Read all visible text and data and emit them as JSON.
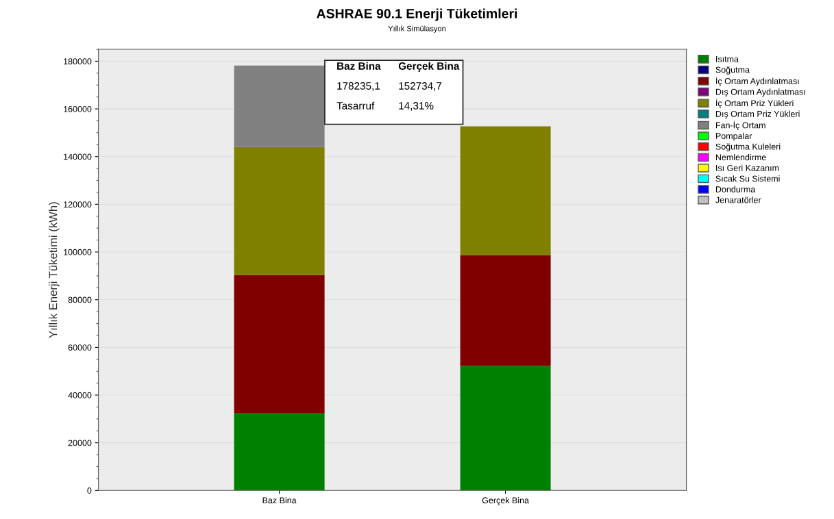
{
  "chart_data": {
    "type": "bar",
    "stacked": true,
    "title": "ASHRAE 90.1 Enerji Tüketimleri",
    "subtitle": "Yıllık Simülasyon",
    "ylabel": "Yıllık Enerji Tüketimi (kWh)",
    "categories": [
      "Baz Bina",
      "Gerçek Bina"
    ],
    "series": [
      {
        "name": "Isıtma",
        "color": "#008000",
        "values": [
          32500,
          52300
        ]
      },
      {
        "name": "Soğutma",
        "color": "#000080",
        "values": [
          0,
          0
        ]
      },
      {
        "name": "İç Ortam Aydınlatması",
        "color": "#800000",
        "values": [
          57800,
          46400
        ]
      },
      {
        "name": "Dış Ortam Aydınlatması",
        "color": "#800080",
        "values": [
          0,
          0
        ]
      },
      {
        "name": "İç Ortam Priz Yükleri",
        "color": "#808000",
        "values": [
          53700,
          54000
        ]
      },
      {
        "name": "Dış Ortam Priz Yükleri",
        "color": "#008080",
        "values": [
          0,
          0
        ]
      },
      {
        "name": "Fan-İç Ortam",
        "color": "#808080",
        "values": [
          34200,
          0
        ]
      },
      {
        "name": "Pompalar",
        "color": "#00ff00",
        "values": [
          0,
          0
        ]
      },
      {
        "name": "Soğutma Kuleleri",
        "color": "#ff0000",
        "values": [
          0,
          0
        ]
      },
      {
        "name": "Nemlendirme",
        "color": "#ff00ff",
        "values": [
          0,
          0
        ]
      },
      {
        "name": "Isı Geri Kazanım",
        "color": "#ffff00",
        "values": [
          0,
          0
        ]
      },
      {
        "name": "Sıcak Su Sistemi",
        "color": "#00ffff",
        "values": [
          0,
          0
        ]
      },
      {
        "name": "Dondurma",
        "color": "#0000ff",
        "values": [
          0,
          0
        ]
      },
      {
        "name": "Jenaratörler",
        "color": "#c0c0c0",
        "values": [
          0,
          0
        ]
      }
    ],
    "ylim": [
      0,
      185000
    ],
    "yticks": [
      0,
      20000,
      40000,
      60000,
      80000,
      100000,
      120000,
      140000,
      160000,
      180000
    ],
    "grid": "y",
    "legend": "right",
    "annotations": [
      "Baz Bina",
      "Gerçek Bina",
      "178235,1",
      "152734,7",
      "Tasarruf",
      "14,31%"
    ]
  }
}
